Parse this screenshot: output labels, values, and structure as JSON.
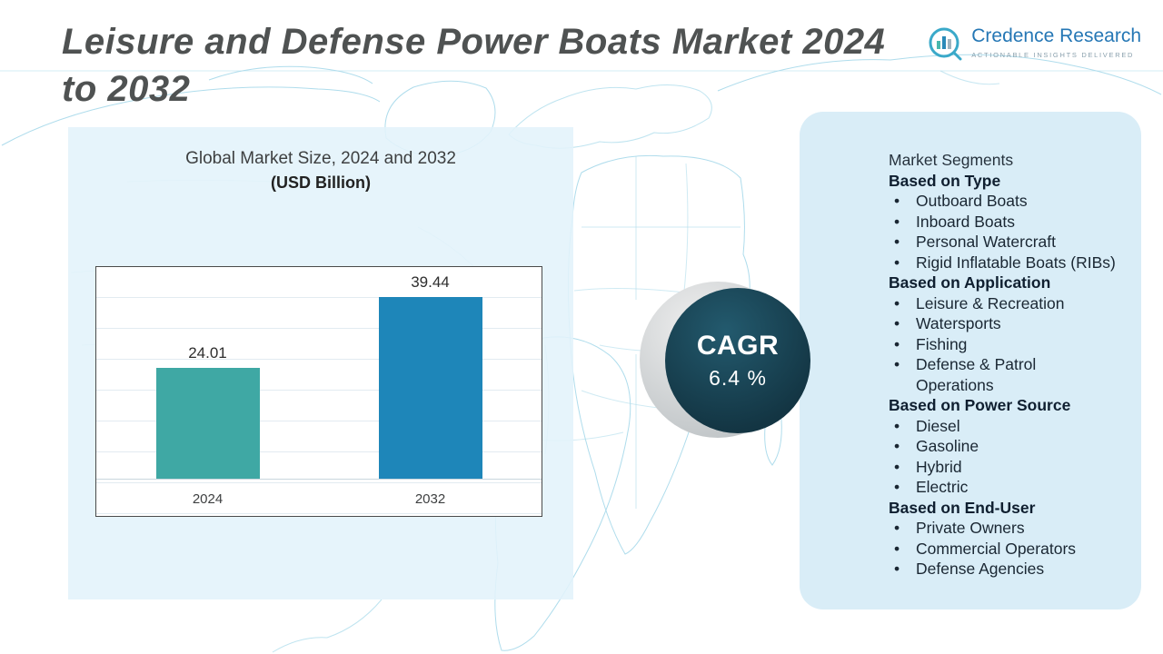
{
  "page": {
    "title": "Leisure and Defense Power Boats Market 2024\nto 2032"
  },
  "logo": {
    "name": "Credence Research",
    "tagline": "Actionable Insights Delivered"
  },
  "chart_data": {
    "type": "bar",
    "title": "Global Market Size, 2024 and 2032",
    "subtitle": "(USD Billion)",
    "categories": [
      "2024",
      "2032"
    ],
    "values": [
      24.01,
      39.44
    ],
    "value_labels": [
      "24.01",
      "39.44"
    ],
    "colors": [
      "#3fa8a4",
      "#1e86b9"
    ],
    "xlabel": "",
    "ylabel": "",
    "ylim": [
      0,
      40
    ],
    "grid": "horizontal",
    "legend": "none"
  },
  "cagr": {
    "label": "CAGR",
    "value": "6.4 %",
    "circle_color": "#16404f"
  },
  "segments": {
    "title": "Market Segments",
    "groups": [
      {
        "heading": "Based on Type",
        "items": [
          "Outboard Boats",
          "Inboard Boats",
          "Personal Watercraft",
          "Rigid Inflatable Boats (RIBs)"
        ]
      },
      {
        "heading": "Based on Application",
        "items": [
          "Leisure & Recreation",
          "Watersports",
          "Fishing",
          "Defense & Patrol\nOperations"
        ]
      },
      {
        "heading": "Based on Power Source",
        "items": [
          "Diesel",
          "Gasoline",
          "Hybrid",
          "Electric"
        ]
      },
      {
        "heading": "Based on End-User",
        "items": [
          "Private Owners",
          "Commercial Operators",
          "Defense Agencies"
        ]
      }
    ]
  },
  "theme": {
    "panel_blue": "#d9ecf6",
    "map_line": "#a6d9ea",
    "title_gray": "#4f5252",
    "logo_blue": "#2577b5"
  }
}
